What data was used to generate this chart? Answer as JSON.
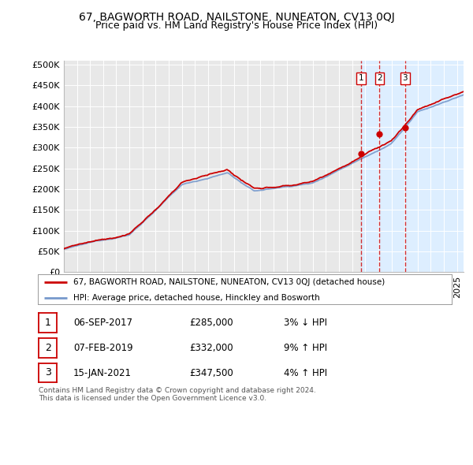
{
  "title": "67, BAGWORTH ROAD, NAILSTONE, NUNEATON, CV13 0QJ",
  "subtitle": "Price paid vs. HM Land Registry's House Price Index (HPI)",
  "ylabel_ticks": [
    "£0",
    "£50K",
    "£100K",
    "£150K",
    "£200K",
    "£250K",
    "£300K",
    "£350K",
    "£400K",
    "£450K",
    "£500K"
  ],
  "ytick_values": [
    0,
    50000,
    100000,
    150000,
    200000,
    250000,
    300000,
    350000,
    400000,
    450000,
    500000
  ],
  "xlim_start": 1995.0,
  "xlim_end": 2025.5,
  "ylim_min": 0,
  "ylim_max": 510000,
  "sale_dates": [
    2017.68,
    2019.09,
    2021.04
  ],
  "sale_prices": [
    285000,
    332000,
    347500
  ],
  "sale_labels": [
    "1",
    "2",
    "3"
  ],
  "legend_red": "67, BAGWORTH ROAD, NAILSTONE, NUNEATON, CV13 0QJ (detached house)",
  "legend_blue": "HPI: Average price, detached house, Hinckley and Bosworth",
  "table_rows": [
    {
      "num": "1",
      "date": "06-SEP-2017",
      "price": "£285,000",
      "change": "3% ↓ HPI"
    },
    {
      "num": "2",
      "date": "07-FEB-2019",
      "price": "£332,000",
      "change": "9% ↑ HPI"
    },
    {
      "num": "3",
      "date": "15-JAN-2021",
      "price": "£347,500",
      "change": "4% ↑ HPI"
    }
  ],
  "footer": "Contains HM Land Registry data © Crown copyright and database right 2024.\nThis data is licensed under the Open Government Licence v3.0.",
  "bg_color": "#ffffff",
  "plot_bg_color": "#e8e8e8",
  "red_color": "#cc0000",
  "blue_color": "#7799cc",
  "vline_color": "#cc0000",
  "shade_color": "#ddeeff",
  "title_fontsize": 10,
  "subtitle_fontsize": 9,
  "tick_fontsize": 8
}
